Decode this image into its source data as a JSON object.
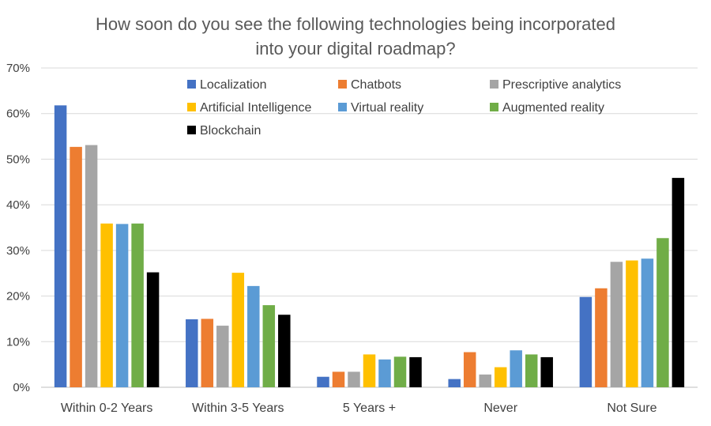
{
  "chart_data": {
    "type": "bar",
    "title_lines": [
      "How soon do you see the following technologies being incorporated",
      "into your digital roadmap?"
    ],
    "categories": [
      "Within 0-2 Years",
      "Within 3-5 Years",
      "5 Years +",
      "Never",
      "Not Sure"
    ],
    "y_ticks": [
      "0%",
      "10%",
      "20%",
      "30%",
      "40%",
      "50%",
      "60%",
      "70%"
    ],
    "ylim": [
      0,
      70
    ],
    "grid": true,
    "legend_position": "top-inside",
    "series": [
      {
        "name": "Localization",
        "color": "#4472C4",
        "values": [
          61.8,
          14.9,
          2.3,
          1.8,
          19.8
        ]
      },
      {
        "name": "Chatbots",
        "color": "#ED7D31",
        "values": [
          52.7,
          15.0,
          3.4,
          7.7,
          21.7
        ]
      },
      {
        "name": "Prescriptive analytics",
        "color": "#A5A5A5",
        "values": [
          53.1,
          13.5,
          3.4,
          2.8,
          27.5
        ]
      },
      {
        "name": "Artificial Intelligence",
        "color": "#FFC000",
        "values": [
          35.9,
          25.1,
          7.2,
          4.4,
          27.8
        ]
      },
      {
        "name": "Virtual reality",
        "color": "#5B9BD5",
        "values": [
          35.8,
          22.2,
          6.1,
          8.1,
          28.2
        ]
      },
      {
        "name": "Augmented reality",
        "color": "#70AD47",
        "values": [
          35.9,
          18.0,
          6.7,
          7.2,
          32.7
        ]
      },
      {
        "name": "Blockchain",
        "color": "#000000",
        "values": [
          25.2,
          15.9,
          6.6,
          6.6,
          45.9
        ]
      }
    ]
  }
}
